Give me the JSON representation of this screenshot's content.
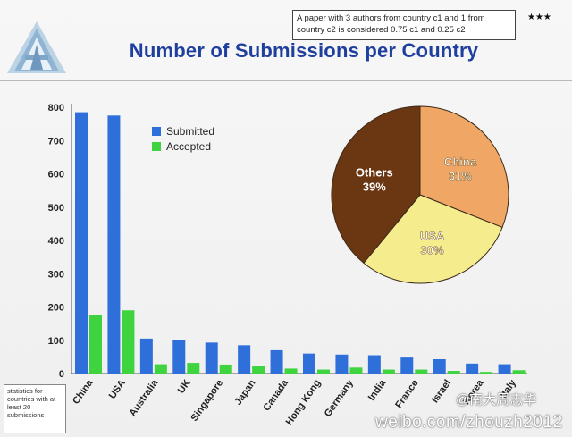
{
  "header": {
    "title": "Number of Submissions per Country",
    "note": "A paper with 3 authors from country c1 and 1 from country c2 is considered 0.75 c1 and 0.25 c2",
    "stars": "★★★"
  },
  "footnote": "statistics for countries with at least 20 submissions",
  "watermark": {
    "handle": "@南大周志华",
    "url": "weibo.com/zhouzh2012"
  },
  "colors": {
    "submitted": "#2f6fd9",
    "accepted": "#3fd43f",
    "title": "#1f3f9e"
  },
  "chart_data": [
    {
      "type": "bar",
      "categories": [
        "China",
        "USA",
        "Australia",
        "UK",
        "Singapore",
        "Japan",
        "Canada",
        "Hong Kong",
        "Germany",
        "India",
        "France",
        "Israel",
        "Korea",
        "Italy"
      ],
      "series": [
        {
          "name": "Submitted",
          "values": [
            785,
            775,
            105,
            100,
            93,
            85,
            70,
            60,
            57,
            55,
            48,
            43,
            30,
            28
          ]
        },
        {
          "name": "Accepted",
          "values": [
            175,
            190,
            28,
            32,
            27,
            23,
            15,
            12,
            18,
            12,
            12,
            8,
            5,
            10
          ]
        }
      ],
      "yticks": [
        0,
        100,
        200,
        300,
        400,
        500,
        600,
        700,
        800
      ],
      "ylim": [
        0,
        800
      ],
      "legend": "top-left",
      "grid": false
    },
    {
      "type": "pie",
      "slices": [
        {
          "label": "China",
          "value_label": "31%",
          "value": 31,
          "color": "#f0a766"
        },
        {
          "label": "USA",
          "value_label": "30%",
          "value": 30,
          "color": "#f5ec8e"
        },
        {
          "label": "Others",
          "value_label": "39%",
          "value": 39,
          "color": "#6b3612"
        }
      ]
    }
  ]
}
